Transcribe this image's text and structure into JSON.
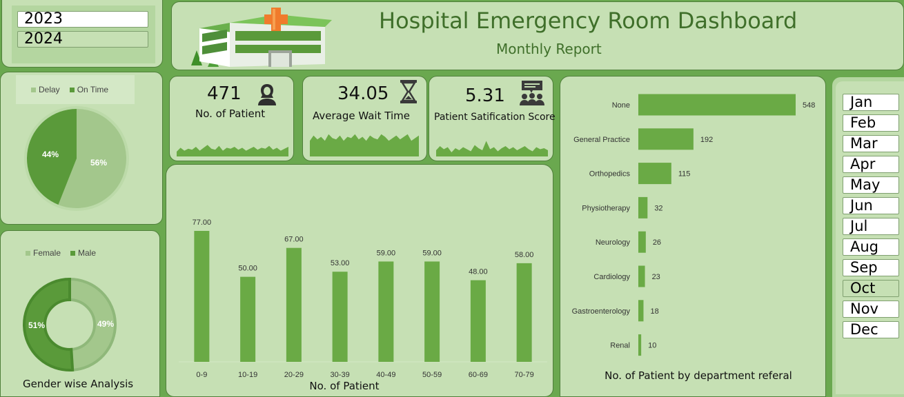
{
  "header": {
    "title": "Hospital Emergency Room Dashboard",
    "subtitle": "Monthly Report"
  },
  "years": [
    {
      "label": "2023",
      "selected": true
    },
    {
      "label": "2024",
      "selected": false
    }
  ],
  "months": [
    {
      "label": "Jan",
      "selected": true
    },
    {
      "label": "Feb",
      "selected": true
    },
    {
      "label": "Mar",
      "selected": true
    },
    {
      "label": "Apr",
      "selected": true
    },
    {
      "label": "May",
      "selected": true
    },
    {
      "label": "Jun",
      "selected": true
    },
    {
      "label": "Jul",
      "selected": true
    },
    {
      "label": "Aug",
      "selected": true
    },
    {
      "label": "Sep",
      "selected": true
    },
    {
      "label": "Oct",
      "selected": false
    },
    {
      "label": "Nov",
      "selected": true
    },
    {
      "label": "Dec",
      "selected": true
    }
  ],
  "kpis": [
    {
      "value": "471",
      "label": "No. of Patient",
      "icon": "patient-icon"
    },
    {
      "value": "34.05",
      "label": "Average Wait Time",
      "icon": "hourglass-icon"
    },
    {
      "value": "5.31",
      "label": "Patient Satification Score",
      "icon": "group-feedback-icon"
    }
  ],
  "colors": {
    "background": "#6aa84f",
    "panel": "#c6e0b4",
    "accent": "#6aaa45",
    "accent_dark": "#5a9a3a",
    "accent_light": "#a3c78c",
    "title": "#3f6f2a"
  },
  "chart_data": [
    {
      "type": "pie",
      "title": "",
      "legend": [
        "Delay",
        "On Time"
      ],
      "legend_position": "top",
      "slices": [
        {
          "name": "Delay",
          "value": 56,
          "label": "56%",
          "color": "#a3c78c"
        },
        {
          "name": "On Time",
          "value": 44,
          "label": "44%",
          "color": "#5a9a3a"
        }
      ]
    },
    {
      "type": "pie",
      "title": "Gender wise Analysis",
      "legend": [
        "Female",
        "Male"
      ],
      "legend_position": "top",
      "donut": true,
      "slices": [
        {
          "name": "Female",
          "value": 49,
          "label": "49%",
          "color": "#a3c78c"
        },
        {
          "name": "Male",
          "value": 51,
          "label": "51%",
          "color": "#5a9a3a"
        }
      ]
    },
    {
      "type": "bar",
      "title": "No. of Patient",
      "categories": [
        "0-9",
        "10-19",
        "20-29",
        "30-39",
        "40-49",
        "50-59",
        "60-69",
        "70-79"
      ],
      "values": [
        77,
        50,
        67,
        53,
        59,
        59,
        48,
        58
      ],
      "labels": [
        "77.00",
        "50.00",
        "67.00",
        "53.00",
        "59.00",
        "59.00",
        "48.00",
        "58.00"
      ],
      "ylim": [
        0,
        90
      ],
      "grid": false
    },
    {
      "type": "bar",
      "orientation": "horizontal",
      "title": "No. of Patient by department referal",
      "categories": [
        "None",
        "General Practice",
        "Orthopedics",
        "Physiotherapy",
        "Neurology",
        "Cardiology",
        "Gastroenterology",
        "Renal"
      ],
      "values": [
        548,
        192,
        115,
        32,
        26,
        23,
        18,
        10
      ],
      "xlim": [
        0,
        560
      ],
      "grid": false
    },
    {
      "type": "area",
      "series_of": "No. of Patient",
      "values": [
        5,
        9,
        6,
        8,
        7,
        10,
        6,
        9,
        12,
        8,
        7,
        11,
        6,
        9,
        8,
        10,
        7,
        9,
        6,
        8,
        10,
        7,
        9,
        8,
        11,
        7,
        9,
        6,
        8,
        10
      ],
      "ylim": [
        0,
        20
      ]
    },
    {
      "type": "area",
      "series_of": "Average Wait Time",
      "values": [
        12,
        16,
        13,
        15,
        12,
        17,
        14,
        13,
        16,
        12,
        15,
        14,
        17,
        13,
        15,
        12,
        16,
        14,
        13,
        17,
        15,
        12,
        14,
        16,
        13,
        15,
        17,
        12,
        14,
        16
      ],
      "ylim": [
        0,
        20
      ]
    },
    {
      "type": "area",
      "series_of": "Patient Satification Score",
      "values": [
        6,
        10,
        7,
        9,
        4,
        8,
        6,
        9,
        7,
        5,
        11,
        8,
        6,
        15,
        7,
        9,
        5,
        8,
        10,
        7,
        9,
        6,
        8,
        10,
        7,
        5,
        9,
        7,
        8,
        6
      ],
      "ylim": [
        0,
        20
      ]
    }
  ]
}
